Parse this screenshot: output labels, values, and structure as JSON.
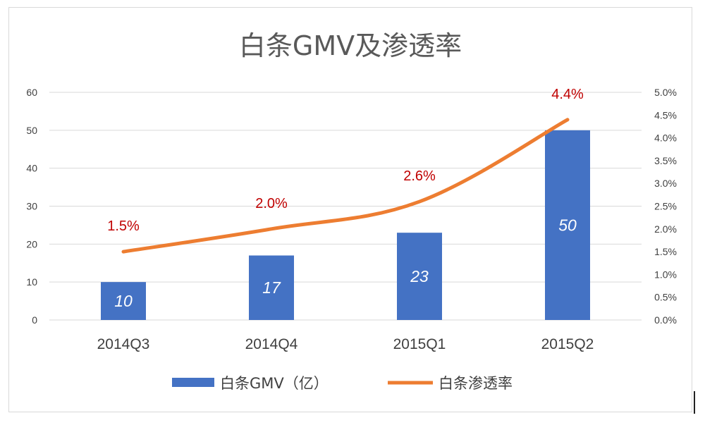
{
  "chart_data": {
    "type": "bar",
    "title": "白条GMV及渗透率",
    "categories": [
      "2014Q3",
      "2014Q4",
      "2015Q1",
      "2015Q2"
    ],
    "series": [
      {
        "name": "白条GMV（亿）",
        "type": "bar",
        "axis": "left",
        "values": [
          10,
          17,
          23,
          50
        ],
        "labels": [
          "10",
          "17",
          "23",
          "50"
        ],
        "color": "#4472c4"
      },
      {
        "name": "白条渗透率",
        "type": "line",
        "axis": "right",
        "values": [
          1.5,
          2.0,
          2.6,
          4.4
        ],
        "labels": [
          "1.5%",
          "2.0%",
          "2.6%",
          "4.4%"
        ],
        "color": "#ed7d31"
      }
    ],
    "left_axis": {
      "min": 0,
      "max": 60,
      "ticks": [
        "0",
        "10",
        "20",
        "30",
        "40",
        "50",
        "60"
      ]
    },
    "right_axis": {
      "min": 0,
      "max": 5,
      "ticks": [
        "0.0%",
        "0.5%",
        "1.0%",
        "1.5%",
        "2.0%",
        "2.5%",
        "3.0%",
        "3.5%",
        "4.0%",
        "4.5%",
        "5.0%"
      ]
    },
    "grid": true,
    "legend": "bottom",
    "label_color": "#c00000",
    "xlabel": "",
    "ylabel": ""
  }
}
